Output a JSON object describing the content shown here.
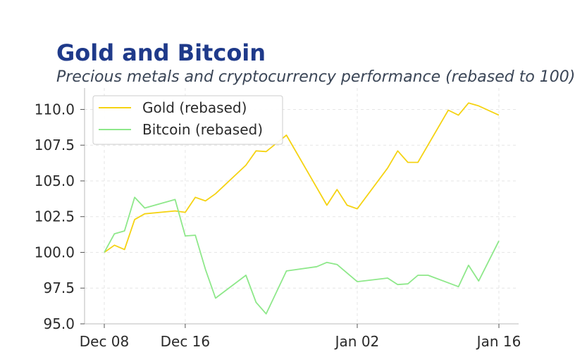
{
  "chart_data": {
    "type": "line",
    "title": "Gold and Bitcoin",
    "subtitle": "Precious metals and cryptocurrency performance (rebased to 100)",
    "xlabel": "",
    "ylabel": "",
    "ylim": [
      95,
      111.5
    ],
    "xlim": [
      "2023-12-08",
      "2024-01-16"
    ],
    "yticks": [
      95.0,
      97.5,
      100.0,
      102.5,
      105.0,
      107.5,
      110.0
    ],
    "ytick_labels": [
      "95.0",
      "97.5",
      "100.0",
      "102.5",
      "105.0",
      "107.5",
      "110.0"
    ],
    "xticks": [
      {
        "date": "2023-12-08",
        "label": "Dec 08"
      },
      {
        "date": "2023-12-16",
        "label": "Dec 16"
      },
      {
        "date": "2024-01-02",
        "label": "Jan 02"
      },
      {
        "date": "2024-01-16",
        "label": "Jan 16"
      }
    ],
    "grid": true,
    "legend_position": "top-left",
    "series": [
      {
        "name": "Gold (rebased)",
        "color": "#f5d313",
        "points": [
          [
            "2023-12-08",
            100.0
          ],
          [
            "2023-12-09",
            100.5
          ],
          [
            "2023-12-10",
            100.2
          ],
          [
            "2023-12-11",
            102.3
          ],
          [
            "2023-12-12",
            102.7
          ],
          [
            "2023-12-15",
            102.9
          ],
          [
            "2023-12-16",
            102.8
          ],
          [
            "2023-12-17",
            103.85
          ],
          [
            "2023-12-18",
            103.6
          ],
          [
            "2023-12-19",
            104.1
          ],
          [
            "2023-12-22",
            106.1
          ],
          [
            "2023-12-23",
            107.1
          ],
          [
            "2023-12-24",
            107.05
          ],
          [
            "2023-12-26",
            108.2
          ],
          [
            "2023-12-30",
            103.3
          ],
          [
            "2023-12-31",
            104.4
          ],
          [
            "2024-01-01",
            103.3
          ],
          [
            "2024-01-02",
            103.05
          ],
          [
            "2024-01-05",
            105.9
          ],
          [
            "2024-01-06",
            107.1
          ],
          [
            "2024-01-07",
            106.3
          ],
          [
            "2024-01-08",
            106.3
          ],
          [
            "2024-01-11",
            109.95
          ],
          [
            "2024-01-12",
            109.6
          ],
          [
            "2024-01-13",
            110.45
          ],
          [
            "2024-01-14",
            110.25
          ],
          [
            "2024-01-16",
            109.6
          ]
        ]
      },
      {
        "name": "Bitcoin (rebased)",
        "color": "#8ee88a",
        "points": [
          [
            "2023-12-08",
            100.0
          ],
          [
            "2023-12-09",
            101.3
          ],
          [
            "2023-12-10",
            101.5
          ],
          [
            "2023-12-11",
            103.85
          ],
          [
            "2023-12-12",
            103.1
          ],
          [
            "2023-12-15",
            103.7
          ],
          [
            "2023-12-16",
            101.15
          ],
          [
            "2023-12-17",
            101.2
          ],
          [
            "2023-12-18",
            98.8
          ],
          [
            "2023-12-19",
            96.8
          ],
          [
            "2023-12-22",
            98.4
          ],
          [
            "2023-12-23",
            96.5
          ],
          [
            "2023-12-24",
            95.7
          ],
          [
            "2023-12-26",
            98.7
          ],
          [
            "2023-12-29",
            99.0
          ],
          [
            "2023-12-30",
            99.3
          ],
          [
            "2023-12-31",
            99.15
          ],
          [
            "2024-01-02",
            97.95
          ],
          [
            "2024-01-05",
            98.2
          ],
          [
            "2024-01-06",
            97.75
          ],
          [
            "2024-01-07",
            97.8
          ],
          [
            "2024-01-08",
            98.4
          ],
          [
            "2024-01-09",
            98.4
          ],
          [
            "2024-01-12",
            97.6
          ],
          [
            "2024-01-13",
            99.1
          ],
          [
            "2024-01-14",
            98.0
          ],
          [
            "2024-01-16",
            100.8
          ]
        ]
      }
    ]
  }
}
